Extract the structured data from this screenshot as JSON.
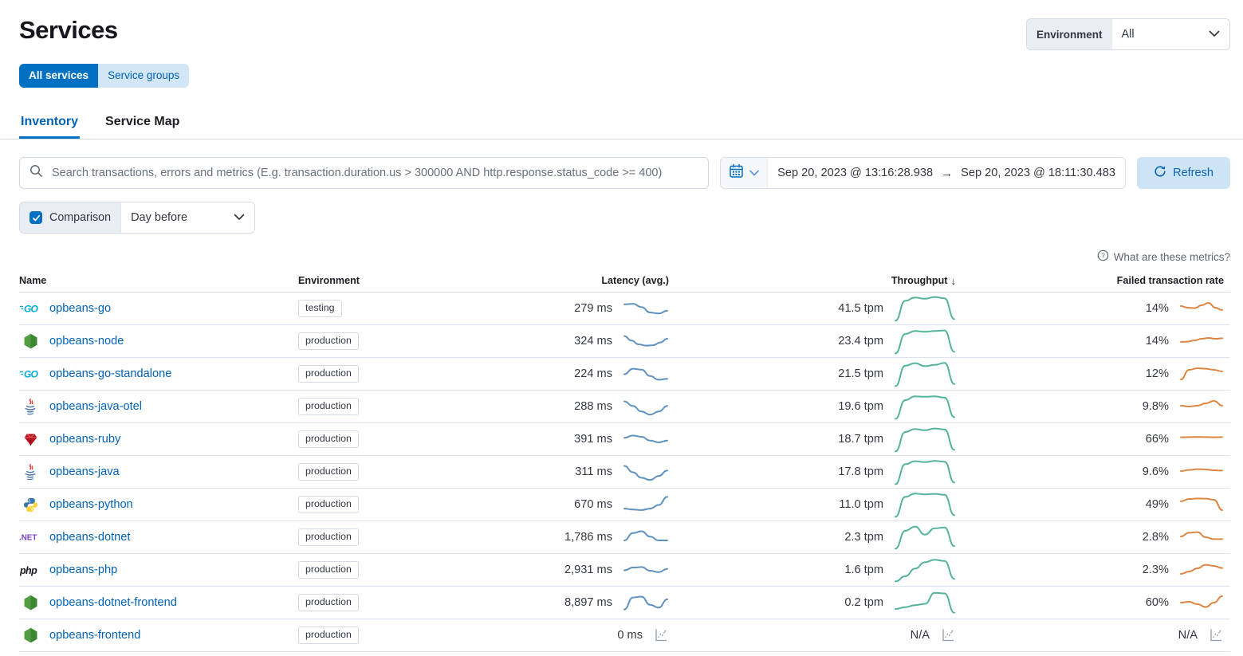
{
  "page": {
    "title": "Services"
  },
  "env_filter": {
    "label": "Environment",
    "value": "All"
  },
  "toggle_buttons": {
    "all_services": "All services",
    "service_groups": "Service groups"
  },
  "tabs": {
    "inventory": "Inventory",
    "service_map": "Service Map"
  },
  "search": {
    "placeholder": "Search transactions, errors and metrics (E.g. transaction.duration.us > 300000 AND http.response.status_code >= 400)"
  },
  "datepicker": {
    "start": "Sep 20, 2023 @ 13:16:28.938",
    "range_separator": "→",
    "end": "Sep 20, 2023 @ 18:11:30.483",
    "refresh_label": "Refresh"
  },
  "comparison": {
    "label": "Comparison",
    "checked": true,
    "value": "Day before"
  },
  "metrics_help": "What are these metrics?",
  "colors": {
    "primary": "#0071c2",
    "link": "#0062b5",
    "latency_spark": "#6092c0",
    "throughput_spark": "#54b399",
    "failed_spark": "#dd8643",
    "na_icon": "#98a2b3"
  },
  "table": {
    "columns": {
      "name": "Name",
      "environment": "Environment",
      "latency": "Latency (avg.)",
      "throughput": "Throughput",
      "failed": "Failed transaction rate"
    },
    "sort": {
      "column": "throughput",
      "direction": "desc",
      "icon": "↓"
    },
    "rows": [
      {
        "name": "opbeans-go",
        "agent": "go",
        "environment": "testing",
        "latency": "279 ms",
        "throughput": "41.5 tpm",
        "failed": "14%",
        "latency_trend": [
          0.75,
          0.78,
          0.6,
          0.3,
          0.25,
          0.4
        ],
        "throughput_trend": [
          0.02,
          0.8,
          0.93,
          0.88,
          0.95,
          0.9,
          0.08
        ],
        "failed_trend": [
          0.65,
          0.55,
          0.52,
          0.7,
          0.85,
          0.55,
          0.4
        ]
      },
      {
        "name": "opbeans-node",
        "agent": "node",
        "environment": "production",
        "latency": "324 ms",
        "throughput": "23.4 tpm",
        "failed": "14%",
        "latency_trend": [
          0.8,
          0.55,
          0.35,
          0.28,
          0.3,
          0.45,
          0.65
        ],
        "throughput_trend": [
          0.02,
          0.78,
          0.9,
          0.87,
          0.9,
          0.92,
          0.08
        ],
        "failed_trend": [
          0.45,
          0.47,
          0.55,
          0.65,
          0.7,
          0.65,
          0.68
        ]
      },
      {
        "name": "opbeans-go-standalone",
        "agent": "go",
        "environment": "production",
        "latency": "224 ms",
        "throughput": "21.5 tpm",
        "failed": "12%",
        "latency_trend": [
          0.5,
          0.8,
          0.75,
          0.4,
          0.2,
          0.25
        ],
        "throughput_trend": [
          0.02,
          0.82,
          0.92,
          0.8,
          0.85,
          0.93,
          0.1
        ],
        "failed_trend": [
          0.15,
          0.75,
          0.85,
          0.82,
          0.75,
          0.65
        ]
      },
      {
        "name": "opbeans-java-otel",
        "agent": "java",
        "environment": "production",
        "latency": "288 ms",
        "throughput": "19.6 tpm",
        "failed": "9.8%",
        "latency_trend": [
          0.8,
          0.55,
          0.25,
          0.08,
          0.25,
          0.55
        ],
        "throughput_trend": [
          0.02,
          0.75,
          0.9,
          0.88,
          0.9,
          0.85,
          0.08
        ],
        "failed_trend": [
          0.55,
          0.5,
          0.55,
          0.7,
          0.85,
          0.55
        ]
      },
      {
        "name": "opbeans-ruby",
        "agent": "ruby",
        "environment": "production",
        "latency": "391 ms",
        "throughput": "18.7 tpm",
        "failed": "66%",
        "latency_trend": [
          0.6,
          0.72,
          0.65,
          0.45,
          0.35,
          0.45
        ],
        "throughput_trend": [
          0.02,
          0.78,
          0.9,
          0.85,
          0.92,
          0.88,
          0.08
        ],
        "failed_trend": [
          0.62,
          0.63,
          0.64,
          0.63,
          0.62,
          0.63
        ]
      },
      {
        "name": "opbeans-java",
        "agent": "java",
        "environment": "production",
        "latency": "311 ms",
        "throughput": "17.8 tpm",
        "failed": "9.6%",
        "latency_trend": [
          0.85,
          0.5,
          0.2,
          0.08,
          0.3,
          0.6
        ],
        "throughput_trend": [
          0.02,
          0.8,
          0.92,
          0.88,
          0.93,
          0.9,
          0.08
        ],
        "failed_trend": [
          0.55,
          0.62,
          0.67,
          0.65,
          0.6,
          0.58
        ]
      },
      {
        "name": "opbeans-python",
        "agent": "python",
        "environment": "production",
        "latency": "670 ms",
        "throughput": "11.0 tpm",
        "failed": "49%",
        "latency_trend": [
          0.3,
          0.25,
          0.22,
          0.3,
          0.5,
          0.95
        ],
        "throughput_trend": [
          0.02,
          0.8,
          0.93,
          0.9,
          0.92,
          0.88,
          0.08
        ],
        "failed_trend": [
          0.7,
          0.85,
          0.88,
          0.87,
          0.8,
          0.15
        ]
      },
      {
        "name": "opbeans-dotnet",
        "agent": "dotnet",
        "environment": "production",
        "latency": "1,786 ms",
        "throughput": "2.3 tpm",
        "failed": "2.8%",
        "latency_trend": [
          0.35,
          0.75,
          0.85,
          0.55,
          0.35,
          0.35
        ],
        "throughput_trend": [
          0.05,
          0.75,
          0.92,
          0.6,
          0.85,
          0.88,
          0.15
        ],
        "failed_trend": [
          0.55,
          0.78,
          0.82,
          0.5,
          0.38,
          0.38
        ]
      },
      {
        "name": "opbeans-php",
        "agent": "php",
        "environment": "production",
        "latency": "2,931 ms",
        "throughput": "1.6 tpm",
        "failed": "2.3%",
        "latency_trend": [
          0.5,
          0.65,
          0.68,
          0.48,
          0.4,
          0.58
        ],
        "throughput_trend": [
          0.05,
          0.25,
          0.55,
          0.8,
          0.9,
          0.85,
          0.15
        ],
        "failed_trend": [
          0.25,
          0.4,
          0.6,
          0.82,
          0.75,
          0.62
        ]
      },
      {
        "name": "opbeans-dotnet-frontend",
        "agent": "node",
        "environment": "production",
        "latency": "8,897 ms",
        "throughput": "0.2 tpm",
        "failed": "60%",
        "latency_trend": [
          0.15,
          0.8,
          0.85,
          0.4,
          0.25,
          0.7
        ],
        "throughput_trend": [
          0.25,
          0.32,
          0.4,
          0.45,
          0.88,
          0.86,
          0.1
        ],
        "failed_trend": [
          0.5,
          0.55,
          0.4,
          0.22,
          0.5,
          0.9
        ]
      },
      {
        "name": "opbeans-frontend",
        "agent": "node",
        "environment": "production",
        "latency": "0 ms",
        "throughput": "N/A",
        "failed": "N/A",
        "latency_trend": null,
        "throughput_trend": null,
        "failed_trend": null
      }
    ]
  }
}
